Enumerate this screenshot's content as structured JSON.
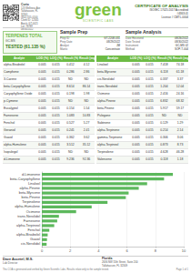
{
  "header": {
    "logo": "green",
    "logo_tagline": "SCIENTIFIC LABS",
    "title": "CERTIFICATE OF ANALYSIS",
    "accreditation": "ISO/IEC 17025:2017 Accredited",
    "cert_no": "#4363.01",
    "licence": "License # CMTL-0004"
  },
  "client": {
    "name": "Curio",
    "lines": [
      "123 Wellness Ave",
      "Tallahassee, FL",
      "32301",
      "(850) 555-0100",
      "Client ID: 12345",
      "Batch: GT-0021",
      "Lot: 78789",
      "08/30/2022"
    ]
  },
  "terpenes_total": {
    "label": "TERPENES TOTAL",
    "method": "GC-MS",
    "status": "TESTED (61.135 %)"
  },
  "sample_prep": {
    "title": "Sample Prep",
    "fields": [
      [
        "Prep ID",
        "GT-2208-031"
      ],
      [
        "Prep Date",
        "08/29/2022"
      ],
      [
        "Analyst",
        "JM"
      ],
      [
        "Matrix",
        "Concentrate"
      ]
    ]
  },
  "sample_analysis": {
    "title": "Sample Analysis",
    "fields": [
      [
        "Date Received",
        "08/26/2022"
      ],
      [
        "Date Tested",
        "08/30/2022"
      ],
      [
        "Instrument",
        "GC-MS 02"
      ],
      [
        "Method",
        "SOP-T-004"
      ]
    ]
  },
  "tables": [
    {
      "columns": [
        "Analyte",
        "LOD (%)",
        "LOQ (%)",
        "Result (%)",
        "Result (mg/g)"
      ],
      "rows": [
        [
          "alpha-Bisabolol",
          "0.005",
          "0.015",
          "0.412",
          "4.12"
        ],
        [
          "Camphene",
          "0.005",
          "0.015",
          "0.286",
          "2.86"
        ],
        [
          "3-Carene",
          "0.005",
          "0.015",
          "ND",
          "ND"
        ],
        [
          "beta-Caryophyllene",
          "0.005",
          "0.015",
          "8.614",
          "86.14"
        ],
        [
          "Caryophyllene Oxide",
          "0.005",
          "0.015",
          "0.198",
          "1.98"
        ],
        [
          "p-Cymene",
          "0.005",
          "0.015",
          "ND",
          "ND"
        ],
        [
          "Eucalyptol",
          "0.005",
          "0.015",
          "0.154",
          "1.54"
        ],
        [
          "Farnesene",
          "0.005",
          "0.015",
          "1.083",
          "10.83"
        ],
        [
          "Fenchol",
          "0.005",
          "0.015",
          "0.527",
          "5.27"
        ],
        [
          "Geraniol",
          "0.005",
          "0.015",
          "0.241",
          "2.41"
        ],
        [
          "Guaiol",
          "0.005",
          "0.015",
          "0.362",
          "3.62"
        ],
        [
          "alpha-Humulene",
          "0.005",
          "0.015",
          "3.512",
          "35.12"
        ],
        [
          "Isopulegol",
          "0.005",
          "0.015",
          "ND",
          "ND"
        ],
        [
          "d-Limonene",
          "0.005",
          "0.015",
          "9.236",
          "92.36"
        ]
      ]
    },
    {
      "columns": [
        "Analyte",
        "LOD (%)",
        "LOQ (%)",
        "Result (%)",
        "Result (mg/g)"
      ],
      "rows": [
        [
          "Linalool",
          "0.005",
          "0.015",
          "7.418",
          "74.18"
        ],
        [
          "beta-Myrcene",
          "0.005",
          "0.015",
          "6.118",
          "61.18"
        ],
        [
          "cis-Nerolidol",
          "0.005",
          "0.015",
          "0.337",
          "3.37"
        ],
        [
          "trans-Nerolidol",
          "0.005",
          "0.015",
          "1.204",
          "12.04"
        ],
        [
          "Ocimene",
          "0.005",
          "0.015",
          "2.416",
          "24.16"
        ],
        [
          "alpha-Pinene",
          "0.005",
          "0.015",
          "6.832",
          "68.32"
        ],
        [
          "beta-Pinene",
          "0.005",
          "0.015",
          "5.917",
          "59.17"
        ],
        [
          "Pulegone",
          "0.005",
          "0.015",
          "ND",
          "ND"
        ],
        [
          "Sabinene",
          "0.005",
          "0.015",
          "0.129",
          "1.29"
        ],
        [
          "alpha-Terpinene",
          "0.005",
          "0.015",
          "0.214",
          "2.14"
        ],
        [
          "gamma-Terpinene",
          "0.005",
          "0.015",
          "0.306",
          "3.06"
        ],
        [
          "alpha-Terpineol",
          "0.005",
          "0.015",
          "0.873",
          "8.73"
        ],
        [
          "Terpinolene",
          "0.005",
          "0.015",
          "4.628",
          "46.28"
        ],
        [
          "Valencene",
          "0.005",
          "0.015",
          "0.118",
          "1.18"
        ]
      ]
    }
  ],
  "chart_data": {
    "type": "bar",
    "orientation": "horizontal",
    "categories": [
      "d-Limonene",
      "beta-Caryophyllene",
      "Linalool",
      "alpha-Pinene",
      "beta-Myrcene",
      "beta-Pinene",
      "Terpinolene",
      "alpha-Humulene",
      "Ocimene",
      "trans-Nerolidol",
      "Farnesene",
      "alpha-Terpineol",
      "Fenchol",
      "alpha-Bisabolol",
      "Guaiol",
      "cis-Nerolidol"
    ],
    "values": [
      9.236,
      8.614,
      7.418,
      6.832,
      6.118,
      5.917,
      4.628,
      3.512,
      2.416,
      1.204,
      1.083,
      0.873,
      0.527,
      0.412,
      0.362,
      0.337
    ],
    "color": "#5cb85c",
    "xlim": [
      0,
      10
    ],
    "xticks": [
      0,
      2,
      4,
      6,
      8,
      10
    ],
    "grid": true
  },
  "footer": {
    "signature_name": "Dave Accetel, M.S.",
    "signature_role": "Lab Director",
    "lab_name": "Florida",
    "lab_address": "2636 NW 55th Street, Suite 200",
    "lab_contact": "Tallahassee, FL 32309",
    "note": "This COA is generated and verified by Green Scientific Labs. Results relate only to the sample tested.",
    "page": "Page 1 of 1"
  }
}
